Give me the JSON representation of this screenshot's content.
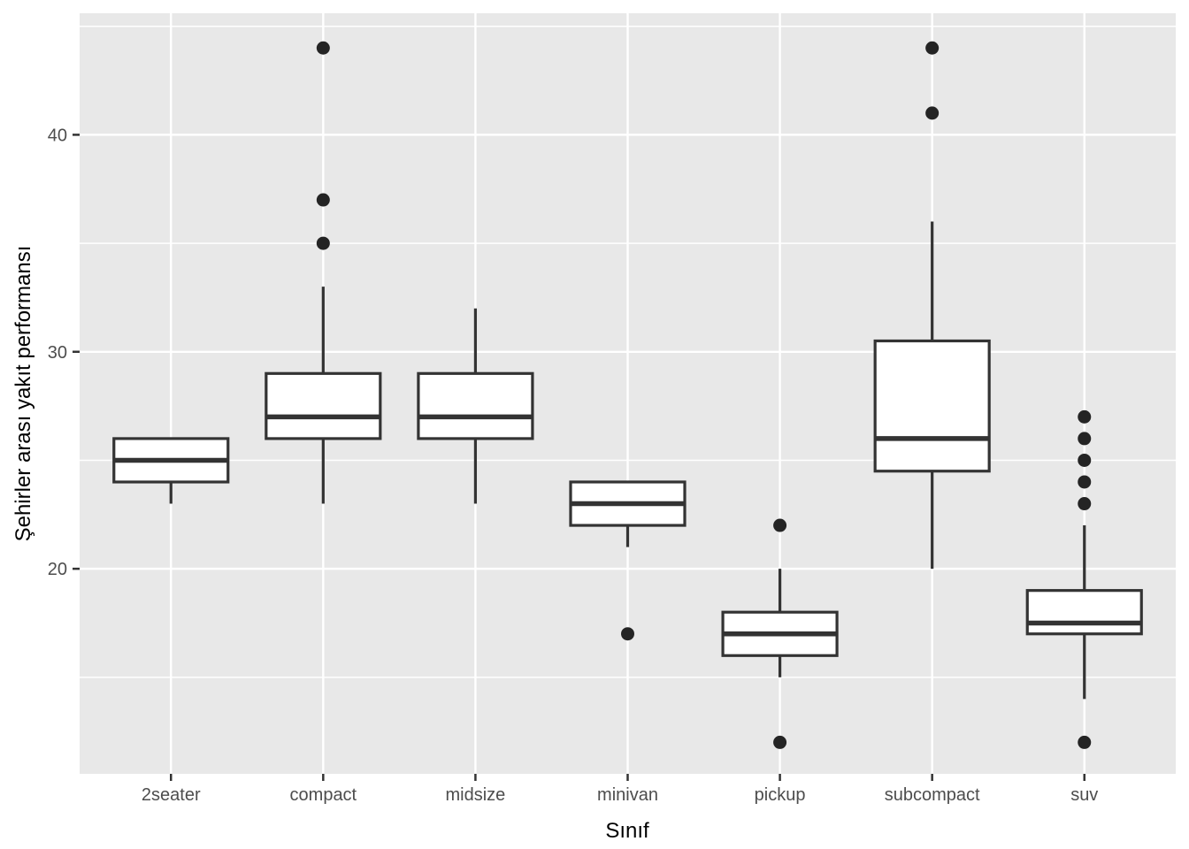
{
  "chart_data": {
    "type": "boxplot",
    "title": "",
    "xlabel": "Sınıf",
    "ylabel": "Şehirler arası yakıt performansı",
    "categories": [
      "2seater",
      "compact",
      "midsize",
      "minivan",
      "pickup",
      "subcompact",
      "suv"
    ],
    "series": [
      {
        "name": "2seater",
        "whisker_low": 23,
        "q1": 24,
        "median": 25,
        "q3": 26,
        "whisker_high": 26,
        "outliers": []
      },
      {
        "name": "compact",
        "whisker_low": 23,
        "q1": 26,
        "median": 27,
        "q3": 29,
        "whisker_high": 33,
        "outliers": [
          35,
          37,
          44
        ]
      },
      {
        "name": "midsize",
        "whisker_low": 23,
        "q1": 26,
        "median": 27,
        "q3": 29,
        "whisker_high": 32,
        "outliers": []
      },
      {
        "name": "minivan",
        "whisker_low": 21,
        "q1": 22,
        "median": 23,
        "q3": 24,
        "whisker_high": 24,
        "outliers": [
          17
        ]
      },
      {
        "name": "pickup",
        "whisker_low": 15,
        "q1": 16,
        "median": 17,
        "q3": 18,
        "whisker_high": 20,
        "outliers": [
          12,
          22
        ]
      },
      {
        "name": "subcompact",
        "whisker_low": 20,
        "q1": 24.5,
        "median": 26,
        "q3": 30.5,
        "whisker_high": 36,
        "outliers": [
          41,
          44
        ]
      },
      {
        "name": "suv",
        "whisker_low": 14,
        "q1": 17,
        "median": 17.5,
        "q3": 19,
        "whisker_high": 22,
        "outliers": [
          12,
          23,
          24,
          25,
          26,
          27
        ]
      }
    ],
    "ylim": [
      10.55,
      45.6
    ],
    "y_major_ticks": [
      20,
      30,
      40
    ],
    "y_minor_ticks": [
      15,
      25,
      35,
      45
    ],
    "grid": "horizontal major+minor and vertical major white lines on grey panel",
    "legend": "none",
    "colors": {
      "panel_background": "#E8E8E8",
      "gridline": "#FFFFFF",
      "box_stroke": "#333333",
      "box_fill": "#FFFFFF",
      "outlier_point": "#242424",
      "tick_mark": "#333333",
      "tick_label": "#4D4D4D",
      "axis_title": "#000000"
    }
  }
}
